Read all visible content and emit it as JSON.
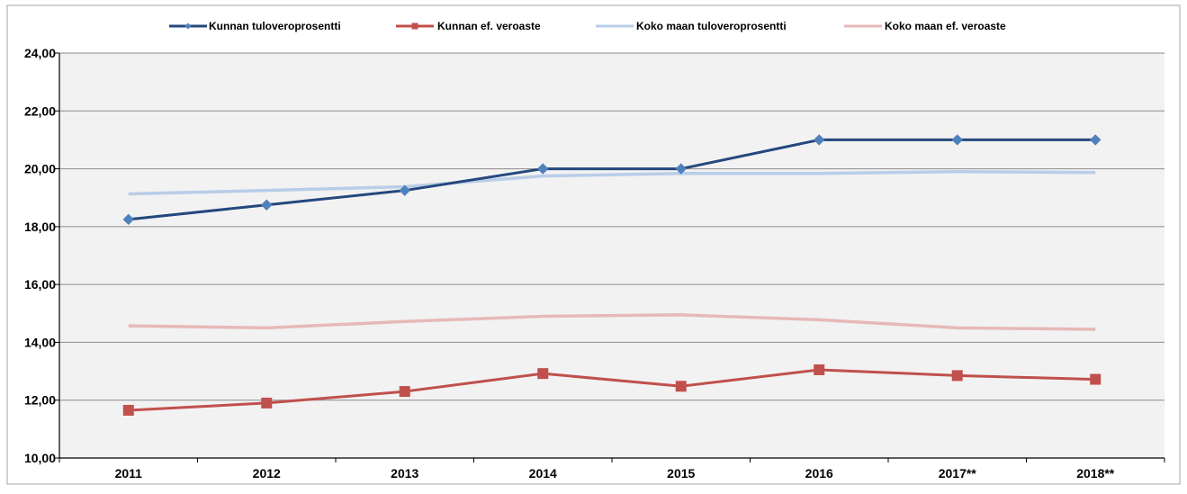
{
  "chart_data": {
    "type": "line",
    "categories": [
      "2011",
      "2012",
      "2013",
      "2014",
      "2015",
      "2016",
      "2017**",
      "2018**"
    ],
    "ylim": [
      10,
      24
    ],
    "yticks": [
      "10,00",
      "12,00",
      "14,00",
      "16,00",
      "18,00",
      "20,00",
      "22,00",
      "24,00"
    ],
    "grid": true,
    "legend_position": "top",
    "series": [
      {
        "name": "Kunnan tuloveroprosentti",
        "color": "#24487e",
        "marker": "diamond",
        "values": [
          18.25,
          18.75,
          19.25,
          20.0,
          20.0,
          21.0,
          21.0,
          21.0
        ]
      },
      {
        "name": "Kunnan ef. veroaste",
        "color": "#c0504d",
        "marker": "square",
        "values": [
          11.65,
          11.9,
          12.3,
          12.92,
          12.48,
          13.05,
          12.85,
          12.72
        ]
      },
      {
        "name": "Koko maan tuloveroprosentti",
        "color": "#b9cde8",
        "marker": "none",
        "values": [
          19.13,
          19.25,
          19.38,
          19.75,
          19.84,
          19.84,
          19.9,
          19.87
        ]
      },
      {
        "name": "Koko maan ef. veroaste",
        "color": "#e6b9b8",
        "marker": "none",
        "values": [
          14.57,
          14.5,
          14.72,
          14.9,
          14.95,
          14.78,
          14.5,
          14.45
        ]
      }
    ]
  }
}
